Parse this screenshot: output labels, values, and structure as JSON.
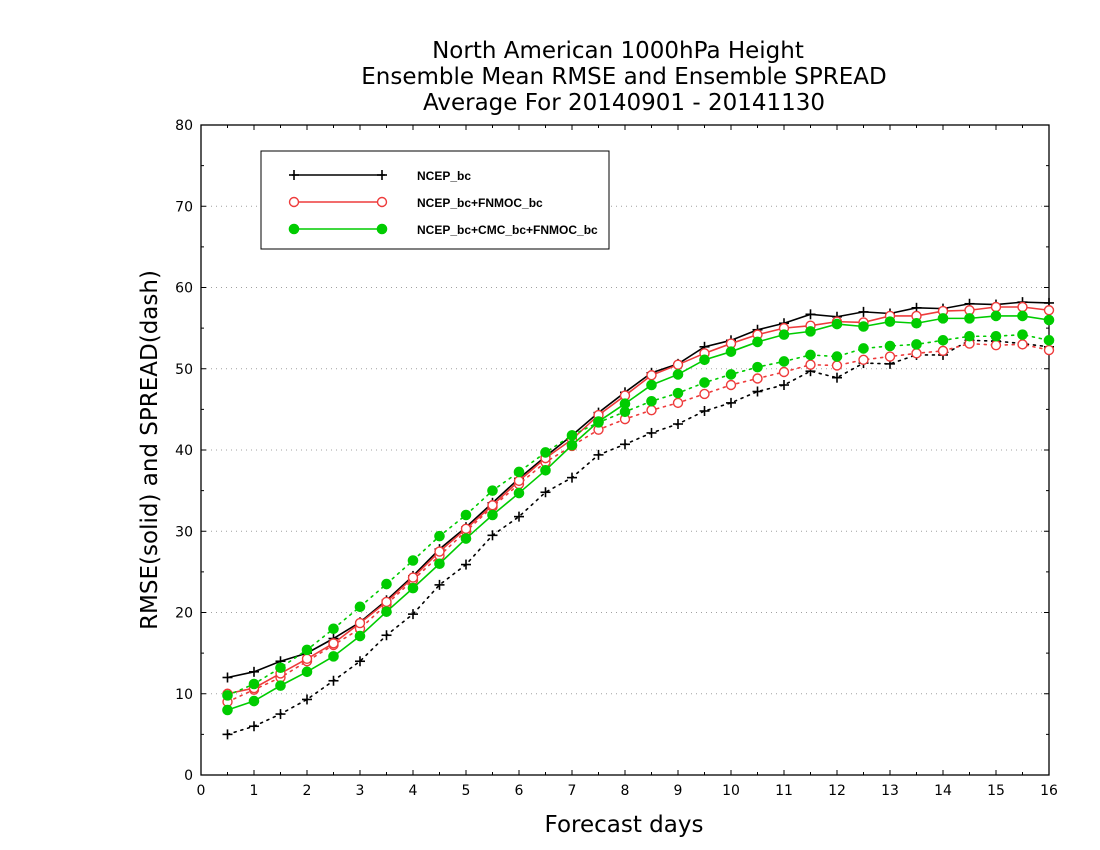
{
  "chart_data": {
    "type": "line",
    "title_lines": [
      "North American 1000hPa Height",
      "Ensemble Mean RMSE and Ensemble SPREAD",
      "Average For 20140901 - 20141130"
    ],
    "xlabel": "Forecast days",
    "ylabel": "RMSE(solid) and SPREAD(dash)",
    "xlim": [
      0,
      16
    ],
    "ylim": [
      0,
      80
    ],
    "xticks": [
      0,
      1,
      2,
      3,
      4,
      5,
      6,
      7,
      8,
      9,
      10,
      11,
      12,
      13,
      14,
      15,
      16
    ],
    "yticks": [
      0,
      10,
      20,
      30,
      40,
      50,
      60,
      70,
      80
    ],
    "grid": "horizontal-dotted",
    "legend_position": "top-left",
    "x": [
      0.5,
      1,
      1.5,
      2,
      2.5,
      3,
      3.5,
      4,
      4.5,
      5,
      5.5,
      6,
      6.5,
      7,
      7.5,
      8,
      8.5,
      9,
      9.5,
      10,
      10.5,
      11,
      11.5,
      12,
      12.5,
      13,
      13.5,
      14,
      14.5,
      15,
      15.5,
      16
    ],
    "series": [
      {
        "name": "NCEP_bc",
        "color": "#000000",
        "marker": "plus",
        "rmse": [
          12,
          12.7,
          14,
          15,
          16.8,
          18.8,
          21.5,
          24.5,
          27.8,
          30.5,
          33.5,
          36.5,
          39.2,
          41.8,
          44.6,
          47.1,
          49.5,
          50.6,
          52.7,
          53.5,
          54.8,
          55.6,
          56.7,
          56.4,
          57,
          56.8,
          57.5,
          57.4,
          58,
          57.9,
          58.2,
          58.1
        ],
        "spread": [
          5,
          6,
          7.5,
          9.3,
          11.6,
          14,
          17.2,
          19.8,
          23.4,
          25.9,
          29.5,
          31.8,
          34.8,
          36.6,
          39.4,
          40.7,
          42.1,
          43.2,
          44.8,
          45.8,
          47.2,
          48,
          49.7,
          48.9,
          50.7,
          50.6,
          51.7,
          51.7,
          53.5,
          53.4,
          53.1,
          52.7
        ]
      },
      {
        "name": "NCEP_bc+FNMOC_bc",
        "color": "#ee3b3b",
        "marker": "open-circle",
        "rmse": [
          10,
          10.7,
          12.5,
          14.3,
          16.2,
          18.7,
          21.3,
          24.3,
          27.5,
          30.3,
          33.2,
          36.2,
          39,
          41.3,
          44.3,
          46.7,
          49.2,
          50.5,
          51.9,
          53.1,
          54.2,
          55,
          55.3,
          55.8,
          55.7,
          56.5,
          56.5,
          57.1,
          57.2,
          57.6,
          57.6,
          57.2
        ],
        "spread": [
          9,
          10.5,
          12,
          14,
          16,
          18,
          21,
          24,
          27,
          30,
          33,
          35.8,
          38.5,
          40.5,
          42.5,
          43.8,
          44.9,
          45.8,
          46.9,
          48,
          48.8,
          49.6,
          50.5,
          50.4,
          51.1,
          51.5,
          51.9,
          52.2,
          53.1,
          52.9,
          53,
          52.3
        ]
      },
      {
        "name": "NCEP_bc+CMC_bc+FNMOC_bc",
        "color": "#00cc00",
        "marker": "filled-circle",
        "rmse": [
          8,
          9.1,
          11,
          12.7,
          14.6,
          17.1,
          20.1,
          23,
          26,
          29.1,
          32,
          34.7,
          37.5,
          40.6,
          43.5,
          45.7,
          48,
          49.3,
          51.1,
          52.1,
          53.3,
          54.2,
          54.6,
          55.5,
          55.2,
          55.8,
          55.6,
          56.2,
          56.2,
          56.5,
          56.5,
          56
        ],
        "spread": [
          9.8,
          11.2,
          13.2,
          15.4,
          18,
          20.7,
          23.5,
          26.4,
          29.4,
          32,
          35,
          37.3,
          39.7,
          41.8,
          43.4,
          44.7,
          46,
          47,
          48.3,
          49.3,
          50.2,
          50.9,
          51.7,
          51.5,
          52.5,
          52.8,
          53,
          53.5,
          54,
          54,
          54.2,
          53.5
        ]
      }
    ]
  }
}
